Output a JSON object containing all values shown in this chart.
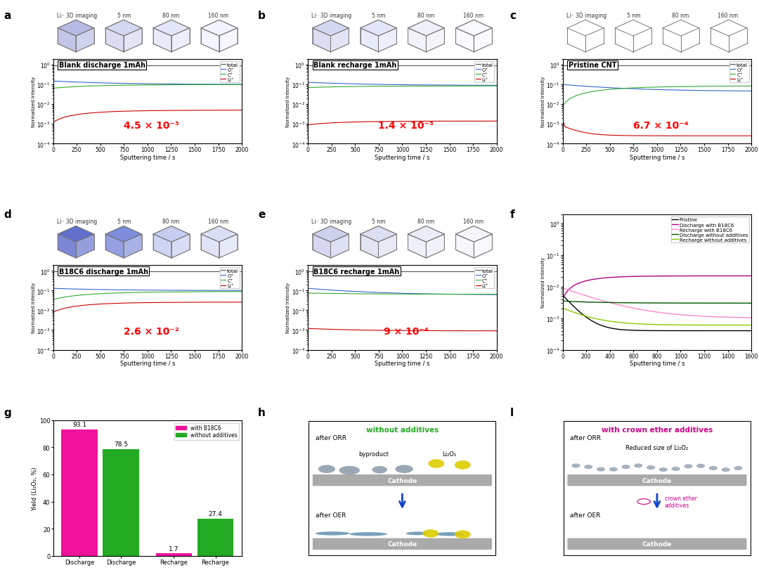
{
  "plot_titles": {
    "a": "Blank discharge 1mAh",
    "b": "Blank recharge 1mAh",
    "c": "Pristine CNT",
    "d": "B18C6 discharge 1mAh",
    "e": "B18C6 recharge 1mAh"
  },
  "xlabel": "Sputtering time / s",
  "ylabel": "Normalized Intensity",
  "annotations": {
    "a": "4.5 × 10⁻³",
    "b": "1.4 × 10⁻³",
    "c": "6.7 × 10⁻⁴",
    "d": "2.6 × 10⁻²",
    "e": "9 × 10⁻⁴"
  },
  "line_colors": {
    "total": "#555555",
    "O": "#3366cc",
    "C": "#33aa33",
    "Li": "#cc0000"
  },
  "bar_data": {
    "categories": [
      "Discharge",
      "Discharge",
      "Recharge",
      "Recharge"
    ],
    "values": [
      93.1,
      78.5,
      1.7,
      27.4
    ],
    "colors": [
      "#ee1199",
      "#22aa22",
      "#ee1199",
      "#22aa22"
    ],
    "ylabel": "Yield (Li₂O₂, %)"
  },
  "panel_f": {
    "legend": [
      "Pristine",
      "Discharge with B18C6",
      "Recharge with B18C6",
      "Discharge without additives",
      "Recharge without additives"
    ],
    "colors": [
      "#000000",
      "#aa0088",
      "#ff88cc",
      "#005500",
      "#88cc00"
    ],
    "xmax": 1600,
    "ylabel": "Normalized Intensity"
  },
  "cube_fill": {
    "a": [
      "#b0b4e0",
      "#d0d4f0",
      "#e0e4f8",
      "#f0f2ff"
    ],
    "b": [
      "#d0d4f0",
      "#e0e4f8",
      "#eeeef8",
      "#f8f8ff"
    ],
    "c": [
      "#e8eaf8",
      "#eeeff8",
      "#f4f4fc",
      "#fafaff"
    ],
    "d": [
      "#5060c8",
      "#7080d8",
      "#c0c8f0",
      "#d8dcf4"
    ],
    "e": [
      "#c8ccec",
      "#d8dcf0",
      "#e8eaf8",
      "#f4f4fc"
    ]
  },
  "cube_headers": [
    "Li⁻ 3D imaging",
    "5 nm",
    "80 nm",
    "160 nm"
  ]
}
